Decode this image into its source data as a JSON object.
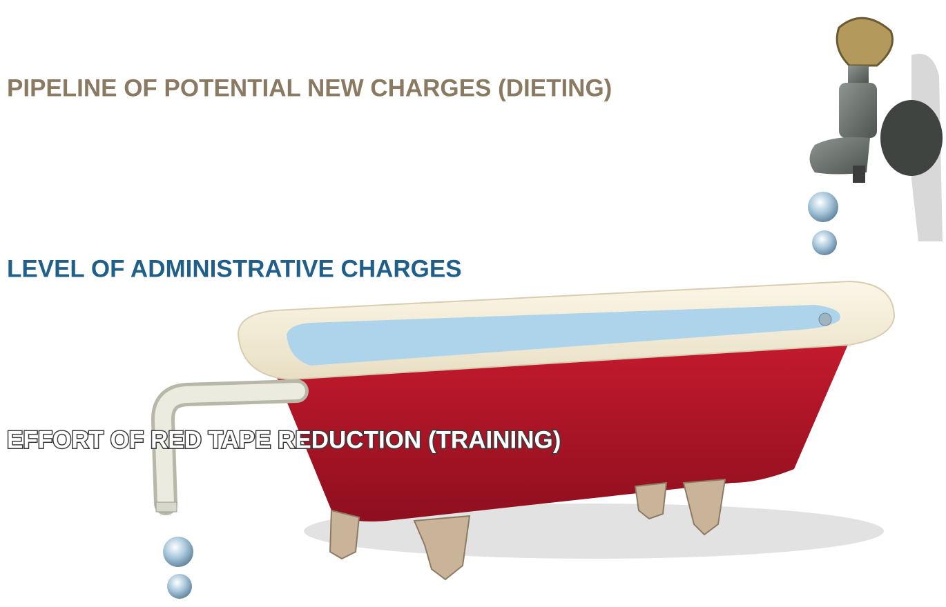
{
  "labels": {
    "inflow": "PIPELINE OF POTENTIAL NEW CHARGES (DIETING)",
    "level": "LEVEL OF ADMINISTRATIVE CHARGES",
    "outflow": "EFFORT OF RED TAPE REDUCTION (TRAINING)"
  }
}
